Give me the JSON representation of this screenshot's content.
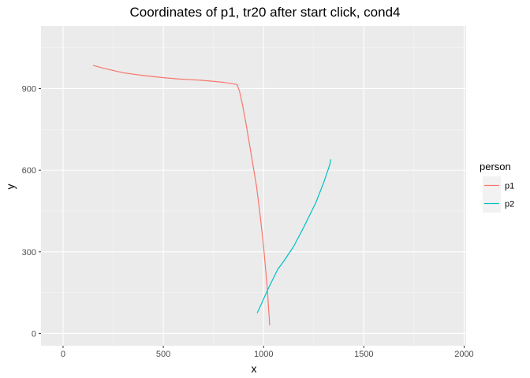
{
  "chart_data": {
    "type": "line",
    "title": "Coordinates of p1, tr20 after start click, cond4",
    "xlabel": "x",
    "ylabel": "y",
    "xlim": [
      -110,
      2010
    ],
    "ylim": [
      -45,
      1130
    ],
    "x_ticks": [
      0,
      500,
      1000,
      1500,
      2000
    ],
    "y_ticks": [
      0,
      300,
      600,
      900
    ],
    "x_tick_labels": [
      "0",
      "500",
      "1000",
      "1500",
      "2000"
    ],
    "y_tick_labels": [
      "0",
      "300",
      "600",
      "900"
    ],
    "grid": true,
    "legend": {
      "title": "person",
      "position": "right"
    },
    "series": [
      {
        "name": "p1",
        "color": "#F8766D",
        "points": [
          [
            150,
            985
          ],
          [
            200,
            975
          ],
          [
            300,
            958
          ],
          [
            400,
            948
          ],
          [
            500,
            940
          ],
          [
            580,
            935
          ],
          [
            700,
            930
          ],
          [
            800,
            923
          ],
          [
            868,
            915
          ],
          [
            880,
            890
          ],
          [
            895,
            840
          ],
          [
            915,
            760
          ],
          [
            940,
            650
          ],
          [
            965,
            540
          ],
          [
            985,
            420
          ],
          [
            1000,
            320
          ],
          [
            1012,
            220
          ],
          [
            1020,
            150
          ],
          [
            1025,
            90
          ],
          [
            1028,
            60
          ],
          [
            1030,
            30
          ]
        ]
      },
      {
        "name": "p2",
        "color": "#00BFC4",
        "points": [
          [
            968,
            75
          ],
          [
            990,
            110
          ],
          [
            1020,
            160
          ],
          [
            1050,
            205
          ],
          [
            1070,
            235
          ],
          [
            1100,
            265
          ],
          [
            1150,
            320
          ],
          [
            1200,
            390
          ],
          [
            1260,
            480
          ],
          [
            1300,
            555
          ],
          [
            1330,
            620
          ],
          [
            1335,
            640
          ]
        ]
      }
    ]
  }
}
